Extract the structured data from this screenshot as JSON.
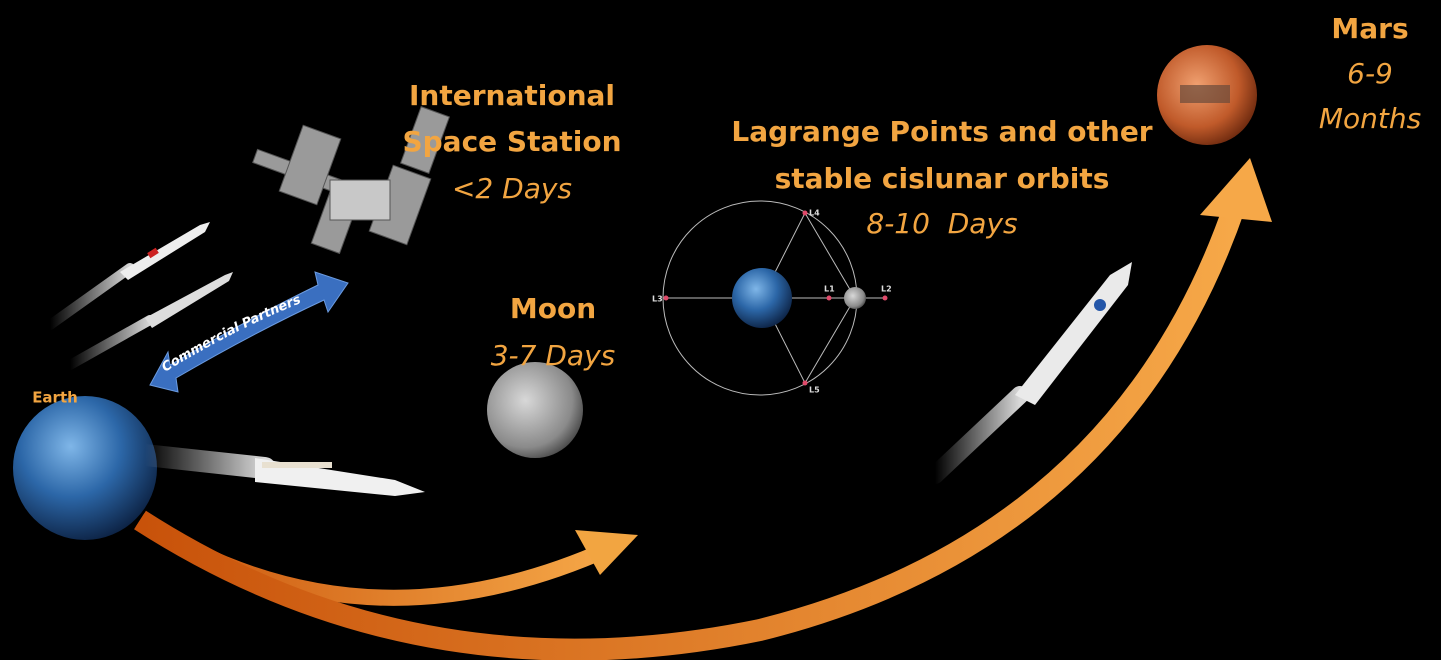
{
  "earth": {
    "label": "Earth"
  },
  "iss": {
    "title_lines": [
      "International",
      "Space Station"
    ],
    "duration": "<2 Days"
  },
  "commercial": {
    "label": "Commercial Partners"
  },
  "moon": {
    "label": "Moon",
    "duration": "3-7 Days"
  },
  "lagrange": {
    "title_lines": [
      "Lagrange Points and other",
      "stable cislunar orbits"
    ],
    "duration": "8-10  Days",
    "points": [
      "L1",
      "L2",
      "L3",
      "L4",
      "L5"
    ]
  },
  "mars": {
    "label": "Mars",
    "duration_lines": [
      "6-9",
      "Months"
    ]
  }
}
